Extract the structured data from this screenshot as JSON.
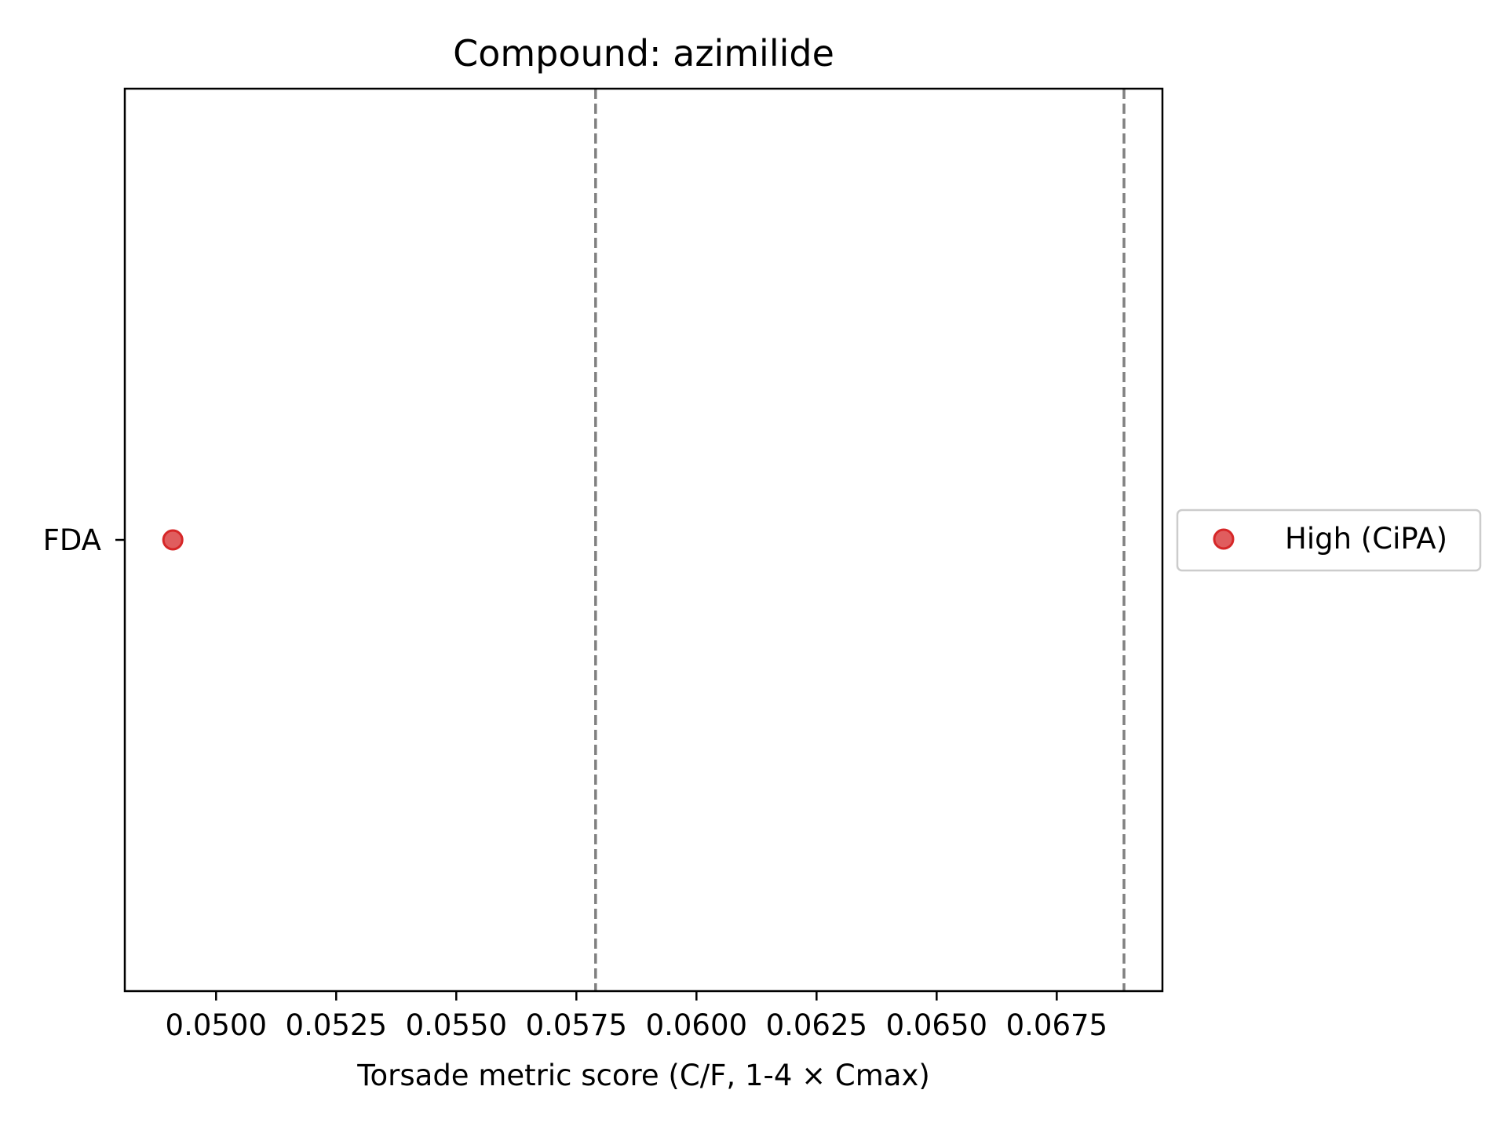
{
  "chart_data": {
    "type": "scatter",
    "title": "Compound: azimilide",
    "xlabel": "Torsade metric score (C/F, 1-4 × Cmax)",
    "ylabel": "",
    "xlim": [
      0.0481,
      0.0697
    ],
    "x_ticks": [
      0.05,
      0.0525,
      0.055,
      0.0575,
      0.06,
      0.0625,
      0.065,
      0.0675
    ],
    "x_tick_labels": [
      "0.0500",
      "0.0525",
      "0.0550",
      "0.0575",
      "0.0600",
      "0.0625",
      "0.0650",
      "0.0675"
    ],
    "y_categories": [
      "FDA"
    ],
    "series": [
      {
        "name": "High (CiPA)",
        "color": "#d62728",
        "points": [
          {
            "x": 0.0491,
            "y": "FDA"
          }
        ]
      }
    ],
    "threshold_lines": [
      {
        "x": 0.0579,
        "style": "dashed",
        "color": "#808080"
      },
      {
        "x": 0.0689,
        "style": "dashed",
        "color": "#808080"
      }
    ],
    "grid": false,
    "legend_position": "right"
  }
}
